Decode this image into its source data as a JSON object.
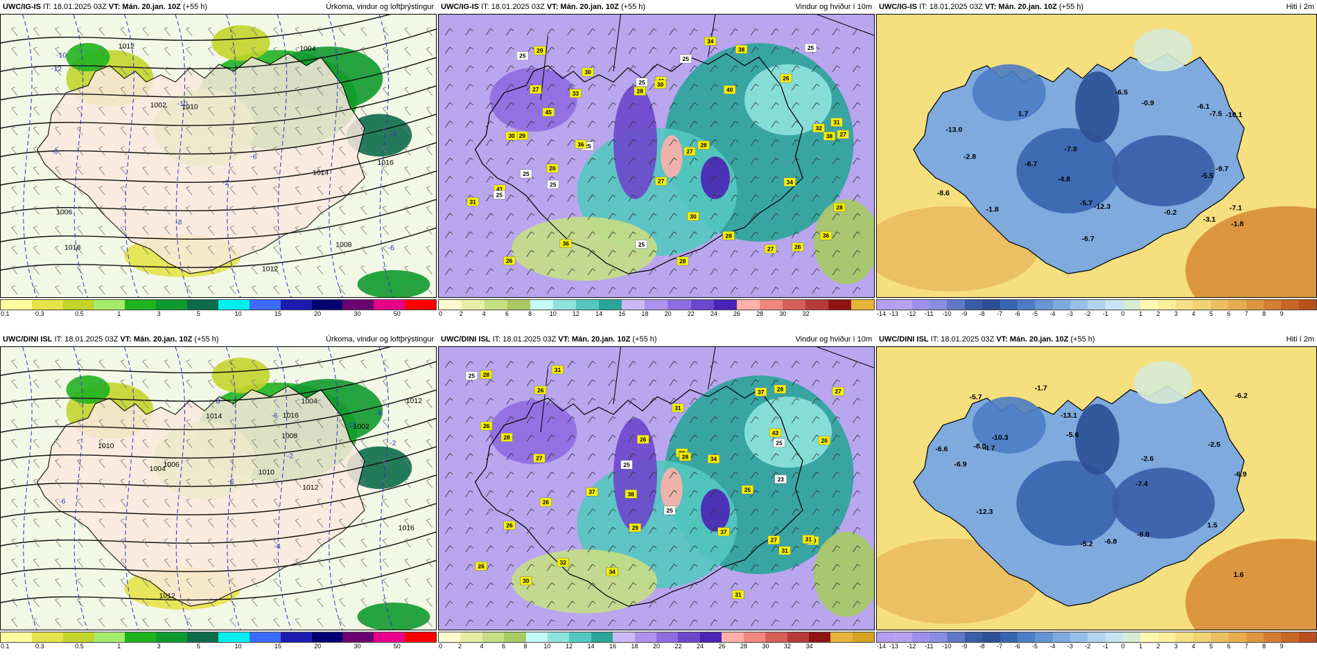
{
  "panels": [
    {
      "id": "p1",
      "model": "UWC/IG-IS",
      "it": "IT: 18.01.2025 03Z",
      "vt_label": "VT:",
      "vt": "Mán. 20.jan. 10Z",
      "lead": "(+55 h)",
      "title": "Úrkoma, vindur og loftþrýstingur",
      "type": "precip",
      "legend": {
        "colors": [
          "#fffb9e",
          "#e6e24a",
          "#c3d42b",
          "#a6ec6c",
          "#1fb31f",
          "#0f9a2e",
          "#0c6b4a",
          "#00f0f0",
          "#3d6bff",
          "#1b1bb0",
          "#000070",
          "#6b0070",
          "#e8008b",
          "#ff0000"
        ],
        "labels": [
          "0.1",
          "0.3",
          "0.5",
          "1",
          "3",
          "5",
          "10",
          "15",
          "20",
          "30",
          "50"
        ]
      },
      "map_labels": [
        "1014",
        "1016",
        "1016",
        "1012",
        "1010",
        "1008",
        "1006",
        "1004",
        "1002",
        "1012",
        "-12",
        "-8",
        "-10",
        "-6",
        "-8",
        "-8",
        "-2",
        "-6",
        "-10"
      ]
    },
    {
      "id": "p2",
      "model": "UWC/IG-IS",
      "it": "IT: 18.01.2025 03Z",
      "vt_label": "VT:",
      "vt": "Mán. 20.jan. 10Z",
      "lead": "(+55 h)",
      "title": "Vindur og hviður í 10m",
      "type": "wind",
      "legend": {
        "colors": [
          "#fffbd0",
          "#e6eda5",
          "#c6de84",
          "#a7ca63",
          "#c4fbf6",
          "#8fe3de",
          "#54c8c0",
          "#2aa59a",
          "#cdb8f7",
          "#ae92ee",
          "#8f6ce0",
          "#6d47cc",
          "#4b23b5",
          "#ffb0a8",
          "#f0887f",
          "#d65f5a",
          "#b83a3a",
          "#8e1414",
          "#e6b43b"
        ],
        "labels": [
          "0",
          "2",
          "4",
          "6",
          "8",
          "10",
          "12",
          "14",
          "16",
          "18",
          "20",
          "22",
          "24",
          "26",
          "28",
          "30",
          "32"
        ]
      },
      "gust_labels": [
        "27",
        "25",
        "28",
        "27",
        "36",
        "38",
        "33",
        "27",
        "28",
        "31",
        "25",
        "27",
        "40",
        "45",
        "26",
        "26",
        "27",
        "32",
        "29",
        "40",
        "38",
        "36",
        "41",
        "34",
        "34",
        "28",
        "25",
        "29",
        "26",
        "30",
        "36",
        "26",
        "31",
        "30",
        "30",
        "28",
        "25",
        "25",
        "30",
        "28",
        "25",
        "25",
        "25",
        "25"
      ]
    },
    {
      "id": "p3",
      "model": "UWC/IG-IS",
      "it": "IT: 18.01.2025 03Z",
      "vt_label": "VT:",
      "vt": "Mán. 20.jan. 10Z",
      "lead": "(+55 h)",
      "title": "Hiti í 2m",
      "type": "temp",
      "legend": {
        "colors": [
          "#b59df0",
          "#b5a2f0",
          "#9f8fea",
          "#8a8ee0",
          "#5f79c8",
          "#3a5da8",
          "#2c4f95",
          "#3864b0",
          "#4d7cc4",
          "#6694d4",
          "#7eaade",
          "#96c0e8",
          "#b0d4f0",
          "#c8e4f2",
          "#d6ead4",
          "#fff8b0",
          "#fbee9a",
          "#f6e087",
          "#f1d275",
          "#ebc062",
          "#e6ad50",
          "#dd9640",
          "#d27f32",
          "#c66726",
          "#b9501c"
        ],
        "labels": [
          "-14",
          "-13",
          "-12",
          "-11",
          "-10",
          "-9",
          "-8",
          "-7",
          "-6",
          "-5",
          "-4",
          "-3",
          "-2",
          "-1",
          "0",
          "1",
          "2",
          "3",
          "4",
          "5",
          "6",
          "7",
          "8",
          "9"
        ]
      },
      "temp_labels": [
        "-7.5",
        "-4.8",
        "-5.5",
        "-0.2",
        "-2.8",
        "-0.9",
        "-5.7",
        "-6.7",
        "-6.5",
        "-7.8",
        "-6.1",
        "-7.1",
        "-10.1",
        "-12.3",
        "-13.0",
        "-6.7",
        "-3.1",
        "1.7",
        "-9.7",
        "-1.8",
        "-1.8",
        "-8.6"
      ]
    },
    {
      "id": "p4",
      "model": "UWC/DINI ISL",
      "it": "IT: 18.01.2025 03Z",
      "vt_label": "VT:",
      "vt": "Mán. 20.jan. 10Z",
      "lead": "(+55 h)",
      "title": "Úrkoma, vindur og loftþrýstingur",
      "type": "precip",
      "legend": {
        "colors": [
          "#fffb9e",
          "#e6e24a",
          "#c3d42b",
          "#a6ec6c",
          "#1fb31f",
          "#0f9a2e",
          "#0c6b4a",
          "#00f0f0",
          "#3d6bff",
          "#1b1bb0",
          "#000070",
          "#6b0070",
          "#e8008b",
          "#ff0000"
        ],
        "labels": [
          "0.1",
          "0.3",
          "0.5",
          "1",
          "3",
          "5",
          "10",
          "15",
          "20",
          "30",
          "50"
        ]
      },
      "map_labels": [
        "1016",
        "1016",
        "1012",
        "1014",
        "1012",
        "1010",
        "1008",
        "1006",
        "1004",
        "1002",
        "1010",
        "1012",
        "1004",
        "-12",
        "-8",
        "-8",
        "-6",
        "-6",
        "-4",
        "-2",
        "-2",
        "-6"
      ]
    },
    {
      "id": "p5",
      "model": "UWC/DINI ISL",
      "it": "IT: 18.01.2025 03Z",
      "vt_label": "VT:",
      "vt": "Mán. 20.jan. 10Z",
      "lead": "(+55 h)",
      "title": "Vindur og hviður í 10m",
      "type": "wind",
      "legend": {
        "colors": [
          "#fffbd0",
          "#e6eda5",
          "#c6de84",
          "#a7ca63",
          "#c4fbf6",
          "#8fe3de",
          "#54c8c0",
          "#2aa59a",
          "#cdb8f7",
          "#ae92ee",
          "#8f6ce0",
          "#6d47cc",
          "#4b23b5",
          "#ffb0a8",
          "#f0887f",
          "#d65f5a",
          "#b83a3a",
          "#8e1414",
          "#e6b43b",
          "#d4a21f"
        ],
        "labels": [
          "0",
          "2",
          "4",
          "6",
          "8",
          "10",
          "12",
          "14",
          "16",
          "18",
          "20",
          "22",
          "24",
          "26",
          "28",
          "30",
          "32",
          "34"
        ]
      },
      "gust_labels": [
        "25",
        "30",
        "29",
        "26",
        "27",
        "25",
        "31",
        "32",
        "28",
        "31",
        "28",
        "37",
        "26",
        "26",
        "31",
        "37",
        "26",
        "27",
        "34",
        "30",
        "31",
        "27",
        "37",
        "43",
        "38",
        "26",
        "28",
        "29",
        "34",
        "26",
        "31",
        "26",
        "23",
        "28",
        "25",
        "26",
        "25"
      ]
    },
    {
      "id": "p6",
      "model": "UWC/DINI ISL",
      "it": "IT: 18.01.2025 03Z",
      "vt_label": "VT:",
      "vt": "Mán. 20.jan. 10Z",
      "lead": "(+55 h)",
      "title": "Hiti í 2m",
      "type": "temp",
      "legend": {
        "colors": [
          "#b59df0",
          "#b5a2f0",
          "#9f8fea",
          "#8a8ee0",
          "#5f79c8",
          "#3a5da8",
          "#2c4f95",
          "#3864b0",
          "#4d7cc4",
          "#6694d4",
          "#7eaade",
          "#96c0e8",
          "#b0d4f0",
          "#c8e4f2",
          "#d6ead4",
          "#fff8b0",
          "#fbee9a",
          "#f6e087",
          "#f1d275",
          "#ebc062",
          "#e6ad50",
          "#dd9640",
          "#d27f32",
          "#c66726",
          "#b9501c"
        ],
        "labels": [
          "-14",
          "-13",
          "-12",
          "-11",
          "-10",
          "-9",
          "-8",
          "-7",
          "-6",
          "-5",
          "-4",
          "-3",
          "-2",
          "-1",
          "0",
          "1",
          "2",
          "3",
          "4",
          "5",
          "6",
          "7",
          "8",
          "9"
        ]
      },
      "temp_labels": [
        "-6.9",
        "-4.7",
        "-5.6",
        "1.6",
        "-2.6",
        "-5.2",
        "-6.6",
        "-8.0",
        "-6.2",
        "-6.0",
        "-6.9",
        "-10.3",
        "-12.3",
        "-13.1",
        "-6.8",
        "-2.5",
        "1.5",
        "-1.7",
        "-5.7",
        "-7.4"
      ]
    }
  ]
}
